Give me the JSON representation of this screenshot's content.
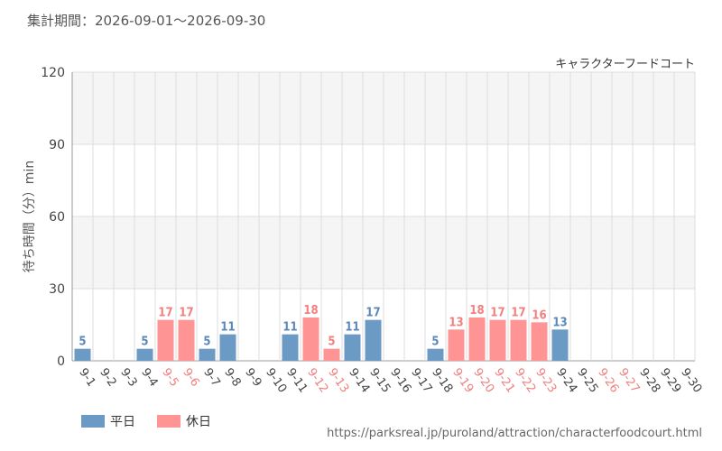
{
  "header": {
    "period_label": "集計期間：2026-09-01～2026-09-30"
  },
  "footer": {
    "source_url": "https://parksreal.jp/puroland/attraction/characterfoodcourt.html"
  },
  "colors": {
    "weekday": "#6b9ac4",
    "holiday": "#ff9494",
    "weekday_label": "#5a87b8",
    "holiday_label": "#f08080",
    "grid": "#dddddd",
    "band": "#f5f5f5",
    "axis_text": "#444444"
  },
  "chart_data": {
    "type": "bar",
    "title": "キャラクターフードコート",
    "ylabel": "待ち時間（分）min",
    "xlabel": "",
    "ylim": [
      0,
      120
    ],
    "yticks": [
      0,
      30,
      60,
      90,
      120
    ],
    "grid": true,
    "legend_position": "bottom-left",
    "categories": [
      "9-1",
      "9-2",
      "9-3",
      "9-4",
      "9-5",
      "9-6",
      "9-7",
      "9-8",
      "9-9",
      "9-10",
      "9-11",
      "9-12",
      "9-13",
      "9-14",
      "9-15",
      "9-16",
      "9-17",
      "9-18",
      "9-19",
      "9-20",
      "9-21",
      "9-22",
      "9-23",
      "9-24",
      "9-25",
      "9-26",
      "9-27",
      "9-28",
      "9-29",
      "9-30"
    ],
    "values": [
      5,
      null,
      null,
      5,
      17,
      17,
      5,
      11,
      null,
      null,
      11,
      18,
      5,
      11,
      17,
      null,
      null,
      5,
      13,
      18,
      17,
      17,
      16,
      13,
      null,
      null,
      null,
      null,
      null,
      null
    ],
    "day_types": [
      "weekday",
      "weekday",
      "weekday",
      "weekday",
      "holiday",
      "holiday",
      "weekday",
      "weekday",
      "weekday",
      "weekday",
      "weekday",
      "holiday",
      "holiday",
      "weekday",
      "weekday",
      "weekday",
      "weekday",
      "weekday",
      "holiday",
      "holiday",
      "holiday",
      "holiday",
      "holiday",
      "weekday",
      "weekday",
      "holiday",
      "holiday",
      "weekday",
      "weekday",
      "weekday"
    ],
    "series": [
      {
        "name": "平日",
        "key": "weekday"
      },
      {
        "name": "休日",
        "key": "holiday"
      }
    ]
  }
}
